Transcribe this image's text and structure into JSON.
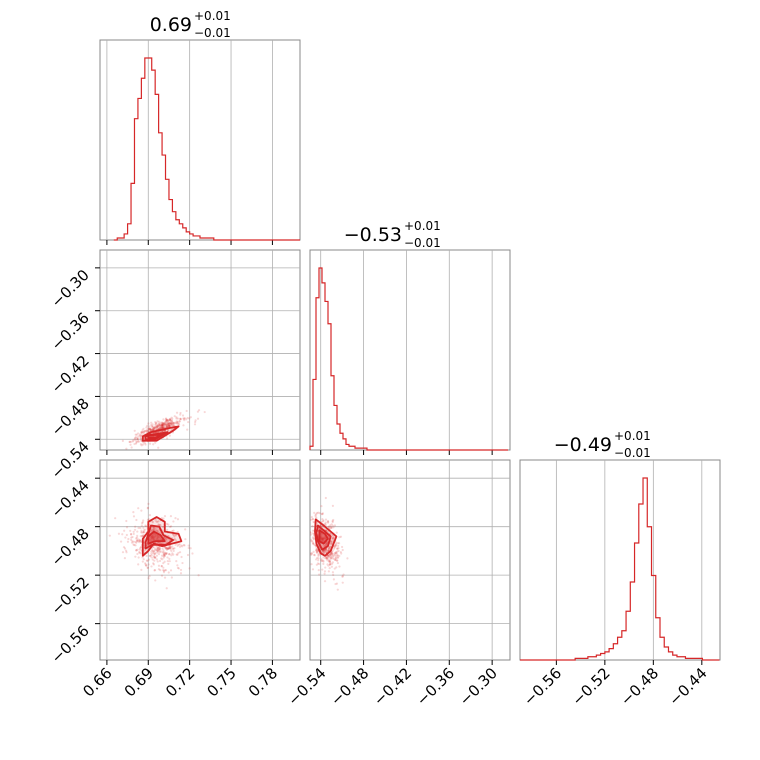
{
  "chart_data": {
    "type": "corner",
    "color": "#d62728",
    "grid": true,
    "panels": {
      "hist_0": {
        "title": "0.69",
        "title_sup": "+0.01",
        "title_sub": "−0.01"
      },
      "hist_1": {
        "title": "−0.53",
        "title_sup": "+0.01",
        "title_sub": "−0.01"
      },
      "hist_2": {
        "title": "−0.49",
        "title_sup": "+0.01",
        "title_sub": "−0.01"
      }
    },
    "axes": {
      "p0": {
        "range": [
          0.655,
          0.8
        ],
        "ticks": [
          0.66,
          0.69,
          0.72,
          0.75,
          0.78
        ],
        "tick_labels": [
          "0.66",
          "0.69",
          "0.72",
          "0.75",
          "0.78"
        ]
      },
      "p1": {
        "range": [
          -0.555,
          -0.275
        ],
        "ticks": [
          -0.54,
          -0.48,
          -0.42,
          -0.36,
          -0.3
        ],
        "tick_labels": [
          "−0.54",
          "−0.48",
          "−0.42",
          "−0.36",
          "−0.30"
        ]
      },
      "p2": {
        "range": [
          -0.59,
          -0.425
        ],
        "ticks": [
          -0.56,
          -0.52,
          -0.48,
          -0.44
        ],
        "tick_labels": [
          "−0.56",
          "−0.52",
          "−0.48",
          "−0.44"
        ]
      }
    },
    "histograms": {
      "p0": {
        "bin_start": 0.665,
        "bin_width": 0.0025,
        "counts": [
          0,
          1,
          1,
          3,
          8,
          28,
          60,
          70,
          80,
          90,
          90,
          84,
          72,
          53,
          42,
          30,
          20,
          14,
          10,
          8,
          6,
          4,
          3,
          2,
          2,
          1,
          1,
          1,
          1,
          0,
          0,
          0,
          0,
          0,
          0,
          0,
          0,
          0,
          0,
          0,
          0,
          0,
          0,
          0,
          0,
          0,
          0,
          0,
          0,
          0,
          0,
          0,
          0,
          0
        ]
      },
      "p1": {
        "bin_start": -0.555,
        "bin_width": 0.0042,
        "counts": [
          2,
          38,
          82,
          98,
          90,
          80,
          68,
          40,
          24,
          14,
          9,
          6,
          3,
          2,
          2,
          1,
          1,
          1,
          1,
          0,
          0,
          0,
          0,
          0,
          0,
          0,
          0,
          0,
          0,
          0,
          0,
          0,
          0,
          0,
          0,
          0,
          0,
          0,
          0,
          0,
          0,
          0,
          0,
          0,
          0,
          0,
          0,
          0,
          0,
          0,
          0,
          0,
          0,
          0,
          0,
          0,
          0,
          0,
          0,
          0,
          0,
          0,
          0,
          0,
          0,
          0,
          0,
          0
        ]
      },
      "p2": {
        "bin_start": -0.59,
        "bin_width": 0.0035,
        "counts": [
          0,
          0,
          0,
          0,
          0,
          0,
          0,
          0,
          0,
          0,
          0,
          0,
          0,
          1,
          1,
          1,
          2,
          2,
          3,
          4,
          5,
          7,
          10,
          14,
          18,
          30,
          48,
          72,
          96,
          112,
          82,
          52,
          26,
          14,
          8,
          5,
          3,
          2,
          2,
          1,
          1,
          1,
          1,
          0,
          0,
          0,
          0,
          0,
          0
        ]
      }
    },
    "pairs": [
      {
        "x": "p0",
        "y": "p1",
        "center": [
          0.693,
          -0.53
        ],
        "spread": [
          0.008,
          0.009
        ],
        "corr": 0.75,
        "contours": [
          [
            [
              0.686,
              -0.536
            ],
            [
              0.686,
              -0.542
            ],
            [
              0.696,
              -0.542
            ],
            [
              0.708,
              -0.528
            ],
            [
              0.712,
              -0.522
            ],
            [
              0.706,
              -0.524
            ],
            [
              0.692,
              -0.53
            ]
          ],
          [
            [
              0.688,
              -0.536
            ],
            [
              0.688,
              -0.54
            ],
            [
              0.695,
              -0.54
            ],
            [
              0.704,
              -0.53
            ],
            [
              0.698,
              -0.532
            ],
            [
              0.691,
              -0.534
            ]
          ],
          [
            [
              0.69,
              -0.535
            ],
            [
              0.69,
              -0.538
            ],
            [
              0.695,
              -0.538
            ],
            [
              0.7,
              -0.533
            ],
            [
              0.694,
              -0.534
            ]
          ]
        ]
      },
      {
        "x": "p0",
        "y": "p2",
        "center": [
          0.693,
          -0.49
        ],
        "spread": [
          0.009,
          0.01
        ],
        "corr": -0.15,
        "contours": [
          [
            [
              0.686,
              -0.504
            ],
            [
              0.69,
              -0.5
            ],
            [
              0.694,
              -0.494
            ],
            [
              0.7,
              -0.496
            ],
            [
              0.714,
              -0.492
            ],
            [
              0.712,
              -0.486
            ],
            [
              0.702,
              -0.484
            ],
            [
              0.702,
              -0.476
            ],
            [
              0.696,
              -0.472
            ],
            [
              0.69,
              -0.476
            ],
            [
              0.69,
              -0.484
            ],
            [
              0.686,
              -0.49
            ]
          ],
          [
            [
              0.688,
              -0.498
            ],
            [
              0.693,
              -0.495
            ],
            [
              0.703,
              -0.495
            ],
            [
              0.708,
              -0.491
            ],
            [
              0.701,
              -0.487
            ],
            [
              0.698,
              -0.48
            ],
            [
              0.692,
              -0.479
            ],
            [
              0.69,
              -0.486
            ],
            [
              0.688,
              -0.493
            ]
          ],
          [
            [
              0.69,
              -0.494
            ],
            [
              0.695,
              -0.492
            ],
            [
              0.702,
              -0.492
            ],
            [
              0.699,
              -0.487
            ],
            [
              0.694,
              -0.484
            ],
            [
              0.69,
              -0.488
            ]
          ]
        ]
      },
      {
        "x": "p1",
        "y": "p2",
        "center": [
          -0.537,
          -0.49
        ],
        "spread": [
          0.01,
          0.01
        ],
        "corr": -0.2,
        "contours": [
          [
            [
              -0.547,
              -0.474
            ],
            [
              -0.538,
              -0.478
            ],
            [
              -0.526,
              -0.484
            ],
            [
              -0.518,
              -0.488
            ],
            [
              -0.522,
              -0.494
            ],
            [
              -0.526,
              -0.5
            ],
            [
              -0.534,
              -0.504
            ],
            [
              -0.54,
              -0.502
            ],
            [
              -0.546,
              -0.494
            ],
            [
              -0.548,
              -0.484
            ]
          ],
          [
            [
              -0.544,
              -0.479
            ],
            [
              -0.536,
              -0.483
            ],
            [
              -0.526,
              -0.488
            ],
            [
              -0.53,
              -0.496
            ],
            [
              -0.538,
              -0.499
            ],
            [
              -0.544,
              -0.492
            ],
            [
              -0.546,
              -0.485
            ]
          ],
          [
            [
              -0.542,
              -0.483
            ],
            [
              -0.534,
              -0.486
            ],
            [
              -0.53,
              -0.49
            ],
            [
              -0.536,
              -0.494
            ],
            [
              -0.542,
              -0.492
            ]
          ]
        ]
      }
    ]
  }
}
